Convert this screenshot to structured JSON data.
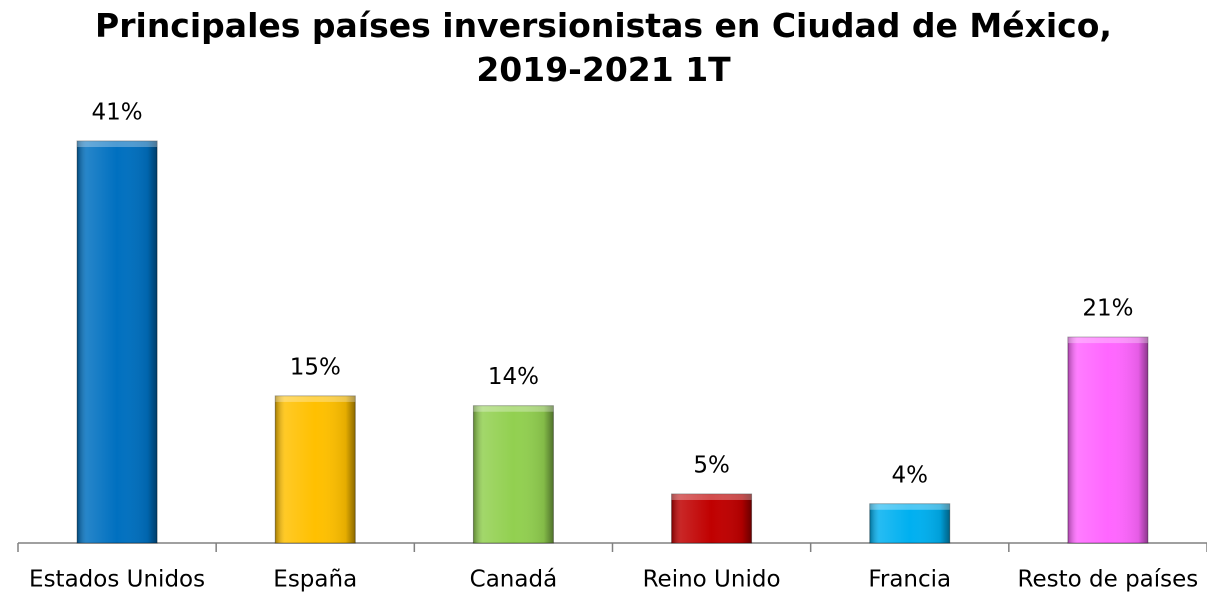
{
  "chart_data": {
    "type": "bar",
    "title": "Principales países inversionistas en Ciudad de México,\n2019-2021 1T",
    "categories": [
      "Estados Unidos",
      "España",
      "Canadá",
      "Reino Unido",
      "Francia",
      "Resto de países"
    ],
    "values": [
      41,
      15,
      14,
      5,
      4,
      21
    ],
    "value_labels": [
      "41%",
      "15%",
      "14%",
      "5%",
      "4%",
      "21%"
    ],
    "colors": [
      "#0070c0",
      "#ffc000",
      "#92d050",
      "#c00000",
      "#00b0f0",
      "#ff66ff"
    ]
  }
}
